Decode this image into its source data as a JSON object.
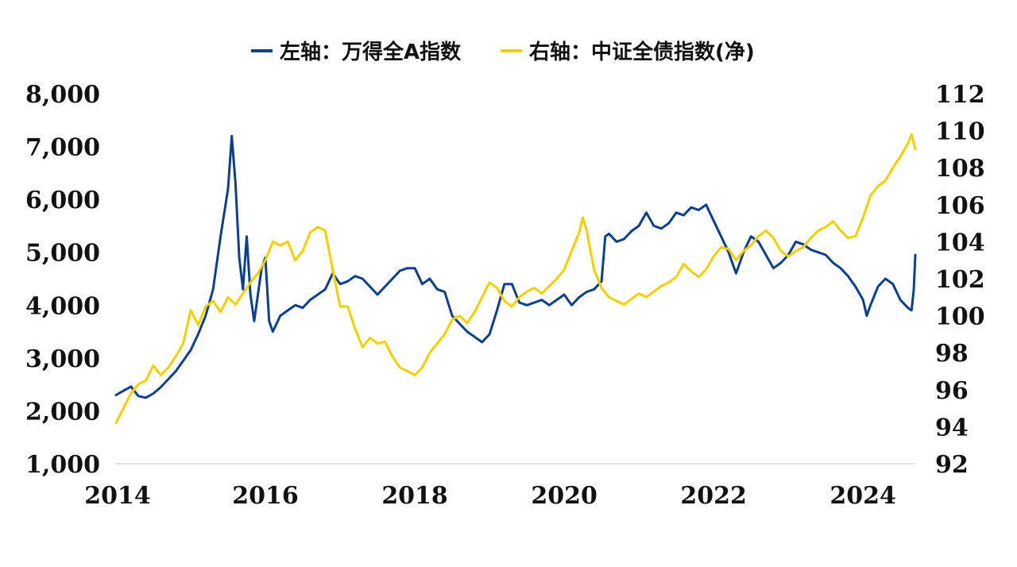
{
  "chart_data": {
    "type": "line",
    "legend_position": "top-center",
    "grid": false,
    "x_ticks": [
      "2014",
      "2016",
      "2018",
      "2020",
      "2022",
      "2024"
    ],
    "x_range": [
      2014,
      2024.7
    ],
    "y_left": {
      "ticks": [
        "1,000",
        "2,000",
        "3,000",
        "4,000",
        "5,000",
        "6,000",
        "7,000",
        "8,000"
      ],
      "range": [
        1000,
        8000
      ]
    },
    "y_right": {
      "ticks": [
        "92",
        "94",
        "96",
        "98",
        "100",
        "102",
        "104",
        "106",
        "108",
        "110",
        "112"
      ],
      "range": [
        92,
        112
      ]
    },
    "series": [
      {
        "name": "左轴：万得全A指数",
        "axis": "left",
        "color": "#0d3f8f",
        "points": [
          [
            2014.0,
            2300
          ],
          [
            2014.1,
            2380
          ],
          [
            2014.2,
            2460
          ],
          [
            2014.3,
            2280
          ],
          [
            2014.4,
            2250
          ],
          [
            2014.5,
            2330
          ],
          [
            2014.6,
            2450
          ],
          [
            2014.7,
            2600
          ],
          [
            2014.8,
            2750
          ],
          [
            2014.9,
            2950
          ],
          [
            2015.0,
            3150
          ],
          [
            2015.1,
            3450
          ],
          [
            2015.2,
            3800
          ],
          [
            2015.3,
            4300
          ],
          [
            2015.4,
            5300
          ],
          [
            2015.5,
            6200
          ],
          [
            2015.55,
            7200
          ],
          [
            2015.6,
            6300
          ],
          [
            2015.65,
            4900
          ],
          [
            2015.7,
            4300
          ],
          [
            2015.75,
            5300
          ],
          [
            2015.8,
            4200
          ],
          [
            2015.85,
            3700
          ],
          [
            2015.9,
            4200
          ],
          [
            2015.95,
            4700
          ],
          [
            2016.0,
            4900
          ],
          [
            2016.05,
            3700
          ],
          [
            2016.1,
            3500
          ],
          [
            2016.2,
            3800
          ],
          [
            2016.3,
            3900
          ],
          [
            2016.4,
            4000
          ],
          [
            2016.5,
            3950
          ],
          [
            2016.6,
            4100
          ],
          [
            2016.7,
            4200
          ],
          [
            2016.8,
            4300
          ],
          [
            2016.9,
            4600
          ],
          [
            2017.0,
            4400
          ],
          [
            2017.1,
            4450
          ],
          [
            2017.2,
            4550
          ],
          [
            2017.3,
            4500
          ],
          [
            2017.4,
            4350
          ],
          [
            2017.5,
            4200
          ],
          [
            2017.6,
            4350
          ],
          [
            2017.7,
            4500
          ],
          [
            2017.8,
            4650
          ],
          [
            2017.9,
            4700
          ],
          [
            2018.0,
            4700
          ],
          [
            2018.1,
            4400
          ],
          [
            2018.2,
            4500
          ],
          [
            2018.3,
            4300
          ],
          [
            2018.4,
            4250
          ],
          [
            2018.5,
            3800
          ],
          [
            2018.6,
            3650
          ],
          [
            2018.7,
            3500
          ],
          [
            2018.8,
            3400
          ],
          [
            2018.9,
            3300
          ],
          [
            2019.0,
            3450
          ],
          [
            2019.1,
            3900
          ],
          [
            2019.2,
            4400
          ],
          [
            2019.3,
            4400
          ],
          [
            2019.4,
            4050
          ],
          [
            2019.5,
            4000
          ],
          [
            2019.6,
            4050
          ],
          [
            2019.7,
            4100
          ],
          [
            2019.8,
            4000
          ],
          [
            2019.9,
            4100
          ],
          [
            2020.0,
            4200
          ],
          [
            2020.1,
            4000
          ],
          [
            2020.2,
            4150
          ],
          [
            2020.3,
            4250
          ],
          [
            2020.4,
            4300
          ],
          [
            2020.5,
            4450
          ],
          [
            2020.55,
            5300
          ],
          [
            2020.6,
            5350
          ],
          [
            2020.7,
            5200
          ],
          [
            2020.8,
            5250
          ],
          [
            2020.9,
            5400
          ],
          [
            2021.0,
            5500
          ],
          [
            2021.1,
            5750
          ],
          [
            2021.2,
            5500
          ],
          [
            2021.3,
            5450
          ],
          [
            2021.4,
            5550
          ],
          [
            2021.5,
            5750
          ],
          [
            2021.6,
            5700
          ],
          [
            2021.7,
            5850
          ],
          [
            2021.8,
            5800
          ],
          [
            2021.9,
            5900
          ],
          [
            2022.0,
            5600
          ],
          [
            2022.1,
            5300
          ],
          [
            2022.2,
            5000
          ],
          [
            2022.3,
            4600
          ],
          [
            2022.4,
            5000
          ],
          [
            2022.5,
            5300
          ],
          [
            2022.6,
            5200
          ],
          [
            2022.7,
            4950
          ],
          [
            2022.8,
            4700
          ],
          [
            2022.9,
            4800
          ],
          [
            2023.0,
            4950
          ],
          [
            2023.1,
            5200
          ],
          [
            2023.2,
            5150
          ],
          [
            2023.3,
            5050
          ],
          [
            2023.4,
            5000
          ],
          [
            2023.5,
            4950
          ],
          [
            2023.6,
            4800
          ],
          [
            2023.7,
            4700
          ],
          [
            2023.8,
            4550
          ],
          [
            2023.9,
            4350
          ],
          [
            2024.0,
            4100
          ],
          [
            2024.05,
            3800
          ],
          [
            2024.1,
            4000
          ],
          [
            2024.2,
            4350
          ],
          [
            2024.3,
            4500
          ],
          [
            2024.4,
            4400
          ],
          [
            2024.5,
            4100
          ],
          [
            2024.6,
            3950
          ],
          [
            2024.65,
            3900
          ],
          [
            2024.68,
            4300
          ],
          [
            2024.7,
            4950
          ]
        ]
      },
      {
        "name": "右轴：中证全债指数(净)",
        "axis": "right",
        "color": "#f5d000",
        "points": [
          [
            2014.0,
            94.2
          ],
          [
            2014.1,
            95.0
          ],
          [
            2014.2,
            95.8
          ],
          [
            2014.3,
            96.3
          ],
          [
            2014.4,
            96.5
          ],
          [
            2014.5,
            97.3
          ],
          [
            2014.6,
            96.8
          ],
          [
            2014.7,
            97.2
          ],
          [
            2014.8,
            97.8
          ],
          [
            2014.9,
            98.5
          ],
          [
            2015.0,
            100.3
          ],
          [
            2015.1,
            99.5
          ],
          [
            2015.2,
            100.5
          ],
          [
            2015.3,
            100.8
          ],
          [
            2015.4,
            100.2
          ],
          [
            2015.5,
            101.0
          ],
          [
            2015.6,
            100.6
          ],
          [
            2015.7,
            101.2
          ],
          [
            2015.8,
            101.8
          ],
          [
            2015.9,
            102.3
          ],
          [
            2016.0,
            103.0
          ],
          [
            2016.1,
            104.0
          ],
          [
            2016.2,
            103.8
          ],
          [
            2016.3,
            104.0
          ],
          [
            2016.4,
            103.0
          ],
          [
            2016.5,
            103.5
          ],
          [
            2016.6,
            104.5
          ],
          [
            2016.7,
            104.8
          ],
          [
            2016.8,
            104.6
          ],
          [
            2016.9,
            102.5
          ],
          [
            2017.0,
            100.5
          ],
          [
            2017.1,
            100.5
          ],
          [
            2017.2,
            99.3
          ],
          [
            2017.3,
            98.3
          ],
          [
            2017.4,
            98.8
          ],
          [
            2017.5,
            98.5
          ],
          [
            2017.6,
            98.6
          ],
          [
            2017.7,
            97.8
          ],
          [
            2017.8,
            97.2
          ],
          [
            2017.9,
            97.0
          ],
          [
            2018.0,
            96.8
          ],
          [
            2018.1,
            97.2
          ],
          [
            2018.2,
            98.0
          ],
          [
            2018.3,
            98.5
          ],
          [
            2018.4,
            99.0
          ],
          [
            2018.5,
            99.8
          ],
          [
            2018.6,
            100.0
          ],
          [
            2018.7,
            99.6
          ],
          [
            2018.8,
            100.2
          ],
          [
            2018.9,
            101.0
          ],
          [
            2019.0,
            101.8
          ],
          [
            2019.1,
            101.5
          ],
          [
            2019.2,
            100.8
          ],
          [
            2019.3,
            100.5
          ],
          [
            2019.4,
            101.0
          ],
          [
            2019.5,
            101.3
          ],
          [
            2019.6,
            101.5
          ],
          [
            2019.7,
            101.2
          ],
          [
            2019.8,
            101.6
          ],
          [
            2019.9,
            102.0
          ],
          [
            2020.0,
            102.5
          ],
          [
            2020.1,
            103.5
          ],
          [
            2020.2,
            104.5
          ],
          [
            2020.25,
            105.3
          ],
          [
            2020.3,
            104.6
          ],
          [
            2020.4,
            102.5
          ],
          [
            2020.5,
            101.5
          ],
          [
            2020.6,
            101.0
          ],
          [
            2020.7,
            100.8
          ],
          [
            2020.8,
            100.6
          ],
          [
            2020.9,
            100.9
          ],
          [
            2021.0,
            101.2
          ],
          [
            2021.1,
            101.0
          ],
          [
            2021.2,
            101.3
          ],
          [
            2021.3,
            101.6
          ],
          [
            2021.4,
            101.8
          ],
          [
            2021.5,
            102.1
          ],
          [
            2021.6,
            102.8
          ],
          [
            2021.7,
            102.4
          ],
          [
            2021.8,
            102.1
          ],
          [
            2021.9,
            102.5
          ],
          [
            2022.0,
            103.2
          ],
          [
            2022.1,
            103.7
          ],
          [
            2022.2,
            103.6
          ],
          [
            2022.3,
            103.0
          ],
          [
            2022.4,
            103.5
          ],
          [
            2022.5,
            103.8
          ],
          [
            2022.6,
            104.3
          ],
          [
            2022.7,
            104.6
          ],
          [
            2022.8,
            104.2
          ],
          [
            2022.9,
            103.5
          ],
          [
            2023.0,
            103.2
          ],
          [
            2023.1,
            103.5
          ],
          [
            2023.2,
            103.7
          ],
          [
            2023.3,
            104.2
          ],
          [
            2023.4,
            104.6
          ],
          [
            2023.5,
            104.8
          ],
          [
            2023.6,
            105.1
          ],
          [
            2023.7,
            104.6
          ],
          [
            2023.8,
            104.2
          ],
          [
            2023.9,
            104.3
          ],
          [
            2024.0,
            105.3
          ],
          [
            2024.1,
            106.5
          ],
          [
            2024.2,
            107.0
          ],
          [
            2024.3,
            107.3
          ],
          [
            2024.4,
            108.0
          ],
          [
            2024.5,
            108.6
          ],
          [
            2024.6,
            109.3
          ],
          [
            2024.65,
            109.8
          ],
          [
            2024.7,
            109.0
          ]
        ]
      }
    ]
  }
}
